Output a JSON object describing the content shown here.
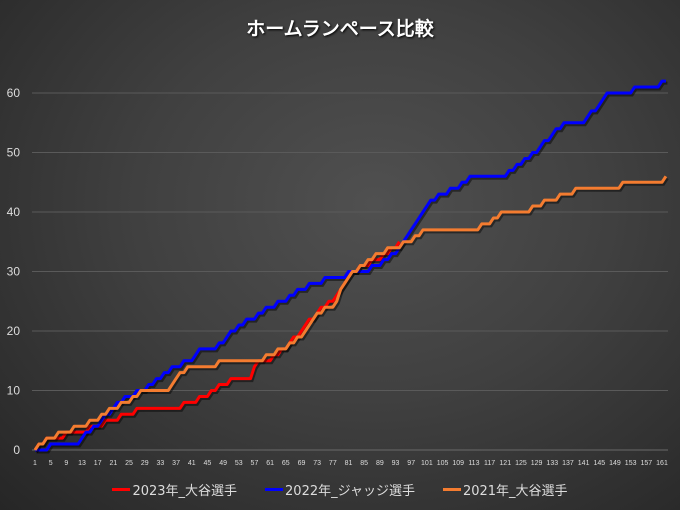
{
  "chart_data": {
    "type": "line",
    "title": "ホームランペース比較",
    "xlabel": "",
    "ylabel": "",
    "ylim": [
      0,
      70
    ],
    "y_ticks": [
      0,
      10,
      20,
      30,
      40,
      50,
      60
    ],
    "x_range": [
      1,
      162
    ],
    "x_ticks": [
      1,
      5,
      9,
      13,
      17,
      21,
      25,
      29,
      33,
      37,
      41,
      45,
      49,
      53,
      57,
      61,
      65,
      69,
      73,
      77,
      81,
      85,
      89,
      93,
      97,
      101,
      105,
      109,
      113,
      117,
      121,
      125,
      129,
      133,
      137,
      141,
      145,
      149,
      153,
      157,
      161
    ],
    "grid": true,
    "legend_position": "bottom",
    "series": [
      {
        "name": "2023年_大谷選手",
        "color": "#ff0000",
        "points": [
          [
            1,
            0
          ],
          [
            5,
            2
          ],
          [
            13,
            3
          ],
          [
            17,
            4
          ],
          [
            21,
            5
          ],
          [
            25,
            6
          ],
          [
            29,
            7
          ],
          [
            37,
            7
          ],
          [
            41,
            8
          ],
          [
            45,
            9
          ],
          [
            49,
            11
          ],
          [
            53,
            12
          ],
          [
            56,
            12
          ],
          [
            58,
            15
          ],
          [
            61,
            15
          ],
          [
            65,
            17
          ],
          [
            69,
            20
          ],
          [
            73,
            23
          ],
          [
            77,
            25
          ],
          [
            81,
            29
          ],
          [
            85,
            31
          ],
          [
            89,
            32
          ],
          [
            94,
            35
          ]
        ]
      },
      {
        "name": "2022年_ジャッジ選手",
        "color": "#0000ff",
        "points": [
          [
            1,
            0
          ],
          [
            4,
            0
          ],
          [
            6,
            1
          ],
          [
            12,
            1
          ],
          [
            14,
            3
          ],
          [
            17,
            4
          ],
          [
            21,
            7
          ],
          [
            25,
            9
          ],
          [
            29,
            10
          ],
          [
            33,
            12
          ],
          [
            37,
            14
          ],
          [
            41,
            15
          ],
          [
            43,
            17
          ],
          [
            47,
            17
          ],
          [
            49,
            18
          ],
          [
            53,
            21
          ],
          [
            57,
            22
          ],
          [
            61,
            24
          ],
          [
            65,
            25
          ],
          [
            69,
            27
          ],
          [
            73,
            28
          ],
          [
            77,
            29
          ],
          [
            85,
            30
          ],
          [
            89,
            31
          ],
          [
            93,
            33
          ],
          [
            97,
            37
          ],
          [
            101,
            41
          ],
          [
            105,
            43
          ],
          [
            109,
            44
          ],
          [
            113,
            46
          ],
          [
            121,
            46
          ],
          [
            125,
            48
          ],
          [
            129,
            50
          ],
          [
            133,
            53
          ],
          [
            137,
            55
          ],
          [
            141,
            55
          ],
          [
            145,
            58
          ],
          [
            147,
            60
          ],
          [
            153,
            60
          ],
          [
            155,
            61
          ],
          [
            160,
            61
          ],
          [
            162,
            62
          ]
        ]
      },
      {
        "name": "2021年_大谷選手",
        "color": "#f47c30",
        "points": [
          [
            1,
            0
          ],
          [
            3,
            1
          ],
          [
            5,
            2
          ],
          [
            9,
            3
          ],
          [
            13,
            4
          ],
          [
            17,
            5
          ],
          [
            21,
            7
          ],
          [
            25,
            8
          ],
          [
            29,
            10
          ],
          [
            35,
            10
          ],
          [
            37,
            12
          ],
          [
            41,
            14
          ],
          [
            46,
            14
          ],
          [
            49,
            15
          ],
          [
            59,
            15
          ],
          [
            61,
            16
          ],
          [
            65,
            17
          ],
          [
            69,
            19
          ],
          [
            73,
            23
          ],
          [
            77,
            24
          ],
          [
            81,
            29
          ],
          [
            85,
            31
          ],
          [
            89,
            33
          ],
          [
            93,
            34
          ],
          [
            97,
            35
          ],
          [
            101,
            37
          ],
          [
            113,
            37
          ],
          [
            117,
            38
          ],
          [
            121,
            40
          ],
          [
            127,
            40
          ],
          [
            129,
            41
          ],
          [
            133,
            42
          ],
          [
            137,
            43
          ],
          [
            141,
            44
          ],
          [
            150,
            44
          ],
          [
            152,
            45
          ],
          [
            161,
            45
          ],
          [
            162,
            46
          ]
        ]
      }
    ]
  }
}
